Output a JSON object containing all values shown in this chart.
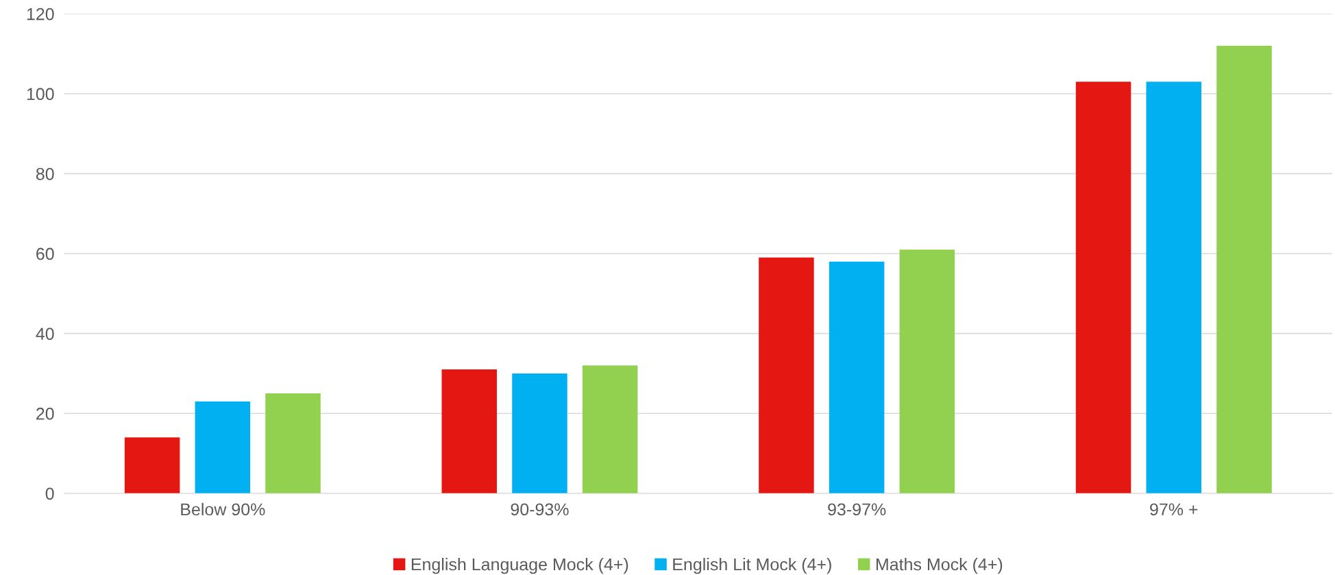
{
  "chart_data": {
    "type": "bar",
    "categories": [
      "Below 90%",
      "90-93%",
      "93-97%",
      "97% +"
    ],
    "series": [
      {
        "name": "English Language Mock (4+)",
        "color": "#e41713",
        "values": [
          14,
          31,
          59,
          103
        ]
      },
      {
        "name": "English Lit Mock (4+)",
        "color": "#00b0f0",
        "values": [
          23,
          30,
          58,
          103
        ]
      },
      {
        "name": "Maths Mock (4+)",
        "color": "#92d050",
        "values": [
          25,
          32,
          61,
          112
        ]
      }
    ],
    "ylim": [
      0,
      120
    ],
    "yticks": [
      0,
      20,
      40,
      60,
      80,
      100,
      120
    ],
    "grid": "y",
    "legend": "bottom"
  }
}
